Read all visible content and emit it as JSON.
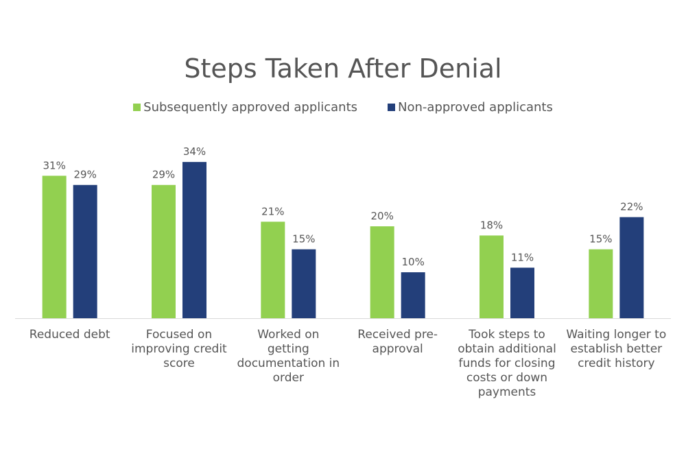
{
  "chart_data": {
    "type": "bar",
    "title": "Steps Taken After Denial",
    "categories": [
      [
        "Reduced debt"
      ],
      [
        "Focused on",
        "improving credit",
        "score"
      ],
      [
        "Worked on",
        "getting",
        "documentation in",
        "order"
      ],
      [
        "Received pre-",
        "approval"
      ],
      [
        "Took steps to",
        "obtain additional",
        "funds for closing",
        "costs or down",
        "payments"
      ],
      [
        "Waiting longer to",
        "establish better",
        "credit history"
      ]
    ],
    "series": [
      {
        "name": "Subsequently approved applicants",
        "color": "#92d050",
        "values": [
          31,
          29,
          21,
          20,
          18,
          15
        ]
      },
      {
        "name": "Non-approved applicants",
        "color": "#233f7a",
        "values": [
          29,
          34,
          15,
          10,
          11,
          22
        ]
      }
    ],
    "value_suffix": "%",
    "ylim": [
      0,
      37
    ],
    "grid": false,
    "legend_position": "top"
  }
}
